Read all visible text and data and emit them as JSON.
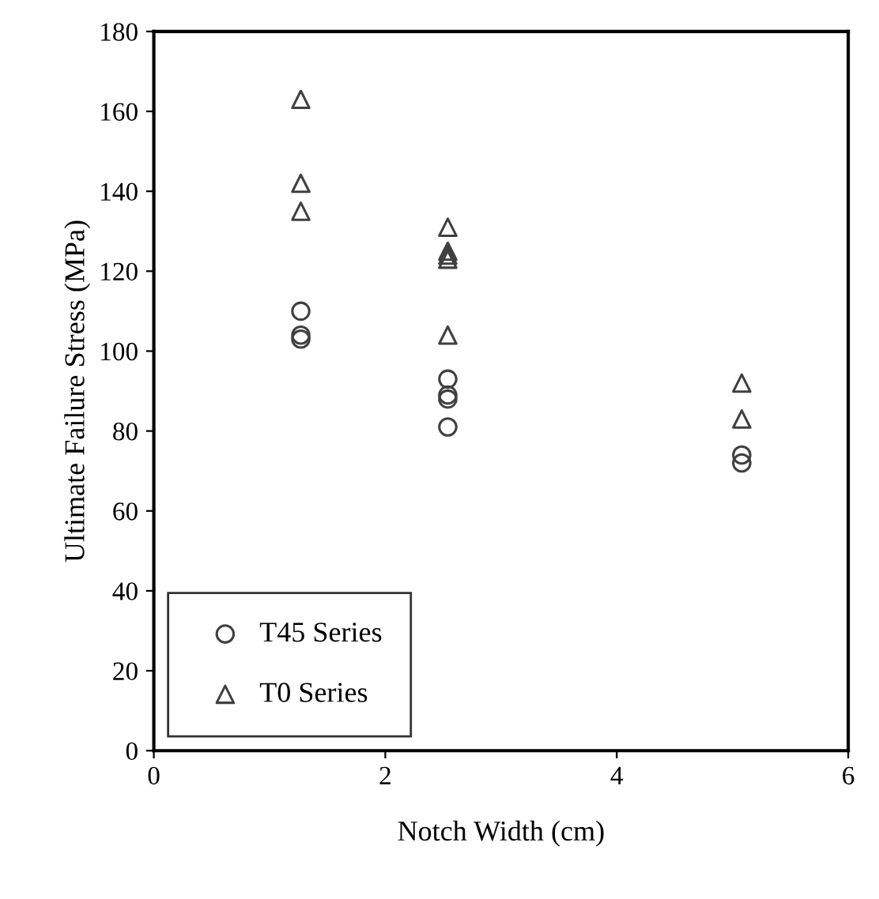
{
  "chart_data": {
    "type": "scatter",
    "xlabel": "Notch Width (cm)",
    "ylabel": "Ultimate Failure Stress (MPa)",
    "xlim": [
      0,
      6
    ],
    "ylim": [
      0,
      180
    ],
    "xticks": [
      0,
      2,
      4,
      6
    ],
    "yticks": [
      0,
      20,
      40,
      60,
      80,
      100,
      120,
      140,
      160,
      180
    ],
    "grid": false,
    "legend": "bottom left",
    "series": [
      {
        "name": "T45 Series",
        "color": "#404040",
        "marker": "circle",
        "x": [
          1.27,
          1.27,
          1.27,
          2.54,
          2.54,
          2.54,
          2.54,
          5.08,
          5.08
        ],
        "values": [
          110,
          104,
          103,
          93,
          89,
          88,
          81,
          74,
          72
        ]
      },
      {
        "name": "T0 Series",
        "color": "#404040",
        "marker": "triangle",
        "x": [
          1.27,
          1.27,
          1.27,
          2.54,
          2.54,
          2.54,
          2.54,
          2.54,
          5.08,
          5.08
        ],
        "values": [
          163,
          142,
          135,
          131,
          125,
          124,
          123,
          104,
          92,
          83
        ]
      }
    ]
  }
}
